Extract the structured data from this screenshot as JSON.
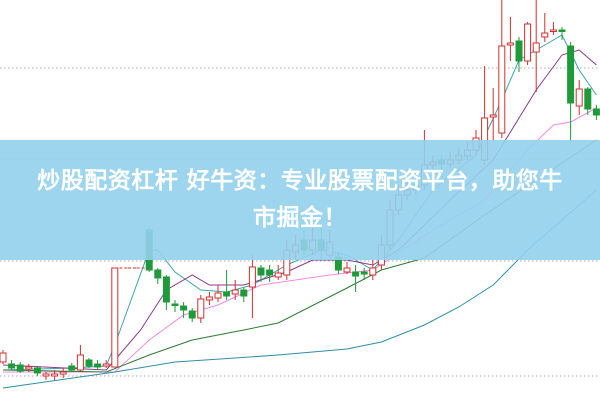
{
  "banner": {
    "line1": "炒股配资杠杆 好牛资：专业股票配资平台，助您牛",
    "line2": "市掘金！"
  },
  "colors": {
    "up": "#d0302f",
    "down": "#1f9a3a",
    "banner": "#94d0ec",
    "grid": "#aaaaaa"
  },
  "chart_data": {
    "type": "candlestick",
    "title": "",
    "xlabel": "",
    "ylabel": "",
    "ylim": [
      0,
      400
    ],
    "grid": "dotted horizontal",
    "candles": [
      [
        38,
        50,
        36,
        47
      ],
      [
        36,
        40,
        30,
        32
      ],
      [
        35,
        38,
        27,
        29
      ],
      [
        31,
        36,
        28,
        33
      ],
      [
        32,
        34,
        24,
        27
      ],
      [
        24,
        28,
        20,
        26
      ],
      [
        24,
        30,
        20,
        26
      ],
      [
        26,
        32,
        22,
        28
      ],
      [
        34,
        37,
        28,
        30
      ],
      [
        30,
        55,
        28,
        45
      ],
      [
        40,
        42,
        32,
        34
      ],
      [
        36,
        40,
        30,
        33
      ],
      [
        34,
        40,
        32,
        36
      ],
      [
        33,
        132,
        33,
        132
      ],
      [
        132,
        132,
        132,
        132
      ],
      [
        132,
        132,
        132,
        132
      ],
      [
        132,
        132,
        132,
        132
      ],
      [
        170,
        172,
        128,
        130
      ],
      [
        130,
        132,
        116,
        122
      ],
      [
        123,
        125,
        90,
        98
      ],
      [
        96,
        100,
        88,
        95
      ],
      [
        94,
        98,
        82,
        90
      ],
      [
        89,
        92,
        78,
        82
      ],
      [
        82,
        105,
        77,
        101
      ],
      [
        100,
        108,
        95,
        103
      ],
      [
        102,
        115,
        98,
        107
      ],
      [
        108,
        130,
        100,
        104
      ],
      [
        106,
        120,
        100,
        110
      ],
      [
        110,
        112,
        98,
        104
      ],
      [
        113,
        145,
        82,
        133
      ],
      [
        132,
        135,
        118,
        125
      ],
      [
        130,
        135,
        118,
        125
      ],
      [
        123,
        135,
        120,
        127
      ],
      [
        125,
        160,
        120,
        150
      ],
      [
        148,
        165,
        140,
        155
      ],
      [
        160,
        170,
        145,
        150
      ],
      [
        150,
        172,
        145,
        160
      ],
      [
        160,
        175,
        140,
        150
      ],
      [
        145,
        170,
        140,
        158
      ],
      [
        143,
        148,
        126,
        130
      ],
      [
        128,
        138,
        126,
        132
      ],
      [
        128,
        135,
        108,
        124
      ],
      [
        128,
        132,
        120,
        126
      ],
      [
        125,
        140,
        120,
        132
      ],
      [
        135,
        165,
        130,
        155
      ],
      [
        155,
        200,
        150,
        190
      ],
      [
        190,
        215,
        185,
        205
      ],
      [
        205,
        220,
        200,
        210
      ],
      [
        215,
        225,
        205,
        210
      ],
      [
        215,
        270,
        210,
        235
      ],
      [
        235,
        245,
        230,
        238
      ],
      [
        240,
        245,
        230,
        236
      ],
      [
        236,
        248,
        232,
        240
      ],
      [
        240,
        252,
        236,
        245
      ],
      [
        244,
        258,
        240,
        250
      ],
      [
        250,
        270,
        245,
        262
      ],
      [
        240,
        334,
        235,
        282
      ],
      [
        283,
        312,
        260,
        285
      ],
      [
        267,
        400,
        262,
        354
      ],
      [
        355,
        383,
        339,
        357
      ],
      [
        359,
        363,
        328,
        339
      ],
      [
        339,
        378,
        335,
        376
      ],
      [
        348,
        400,
        308,
        357
      ],
      [
        363,
        387,
        358,
        367
      ],
      [
        369,
        378,
        365,
        370
      ],
      [
        370,
        373,
        360,
        369
      ],
      [
        354,
        358,
        258,
        297
      ],
      [
        294,
        320,
        285,
        311
      ],
      [
        311,
        313,
        285,
        291
      ],
      [
        291,
        295,
        280,
        285
      ]
    ],
    "candle_fields": [
      "open",
      "high",
      "low",
      "close"
    ],
    "series": [
      {
        "color": "#3aa7ae",
        "points": [
          [
            0,
            30
          ],
          [
            8,
            32
          ],
          [
            12,
            34
          ],
          [
            13,
            55
          ],
          [
            17,
            150
          ],
          [
            18,
            150
          ],
          [
            20,
            128
          ],
          [
            23,
            110
          ],
          [
            26,
            108
          ],
          [
            29,
            115
          ],
          [
            33,
            135
          ],
          [
            37,
            150
          ],
          [
            40,
            145
          ],
          [
            43,
            130
          ],
          [
            46,
            160
          ],
          [
            50,
            210
          ],
          [
            55,
            245
          ],
          [
            58,
            300
          ],
          [
            60,
            340
          ],
          [
            63,
            355
          ],
          [
            65,
            365
          ],
          [
            67,
            330
          ],
          [
            69,
            305
          ]
        ]
      },
      {
        "color": "#8a3a8a",
        "points": [
          [
            0,
            35
          ],
          [
            12,
            30
          ],
          [
            13,
            40
          ],
          [
            16,
            70
          ],
          [
            19,
            110
          ],
          [
            22,
            125
          ],
          [
            24,
            115
          ],
          [
            28,
            115
          ],
          [
            33,
            128
          ],
          [
            36,
            140
          ],
          [
            40,
            140
          ],
          [
            43,
            135
          ],
          [
            46,
            150
          ],
          [
            52,
            200
          ],
          [
            57,
            240
          ],
          [
            62,
            310
          ],
          [
            65,
            345
          ],
          [
            67,
            350
          ],
          [
            69,
            335
          ]
        ]
      },
      {
        "color": "#f08ce6",
        "points": [
          [
            0,
            28
          ],
          [
            13,
            28
          ],
          [
            17,
            60
          ],
          [
            21,
            85
          ],
          [
            25,
            95
          ],
          [
            30,
            115
          ],
          [
            38,
            125
          ],
          [
            43,
            130
          ],
          [
            50,
            170
          ],
          [
            56,
            200
          ],
          [
            61,
            250
          ],
          [
            64,
            275
          ],
          [
            66,
            278
          ],
          [
            69,
            292
          ]
        ]
      },
      {
        "color": "#2e7d32",
        "points": [
          [
            0,
            30
          ],
          [
            12,
            28
          ],
          [
            17,
            45
          ],
          [
            22,
            60
          ],
          [
            28,
            70
          ],
          [
            32,
            77
          ],
          [
            40,
            112
          ],
          [
            44,
            130
          ],
          [
            49,
            142
          ],
          [
            56,
            185
          ],
          [
            69,
            260
          ]
        ]
      },
      {
        "color": "#2f8fa8",
        "points": [
          [
            0,
            12
          ],
          [
            13,
            28
          ],
          [
            20,
            38
          ],
          [
            27,
            42
          ],
          [
            32,
            45
          ],
          [
            40,
            51
          ],
          [
            44,
            58
          ],
          [
            49,
            75
          ],
          [
            53,
            93
          ],
          [
            57,
            115
          ],
          [
            61,
            150
          ],
          [
            65,
            180
          ],
          [
            69,
            210
          ]
        ]
      }
    ],
    "gridlines": [
      332,
      241,
      139,
      24
    ]
  }
}
